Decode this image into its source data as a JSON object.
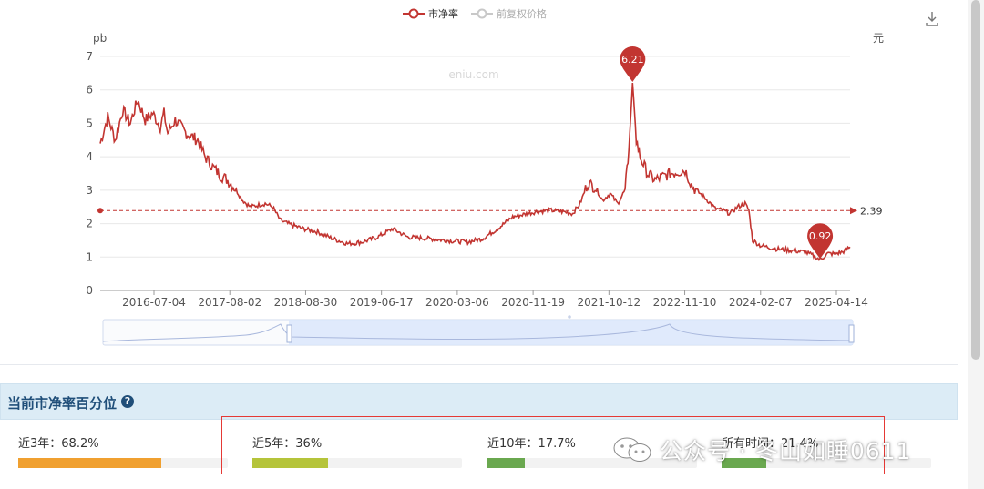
{
  "chart": {
    "watermark_text": "eniu.com",
    "legend": [
      {
        "label": "市净率",
        "color": "#c23531",
        "active": true
      },
      {
        "label": "前复权价格",
        "color": "#c8c8c8",
        "active": false
      }
    ],
    "left_unit": "pb",
    "right_unit": "元",
    "download_icon": "download-icon",
    "colors": {
      "line": "#c23531",
      "avg": "#c23531",
      "grid": "#e8e8e8",
      "axis_text": "#555555"
    }
  },
  "chart_data": {
    "type": "line",
    "ylabel": "pb",
    "ylim": [
      0,
      7
    ],
    "yticks": [
      "0",
      "1",
      "2",
      "3",
      "4",
      "5",
      "6",
      "7"
    ],
    "xticks": [
      "2016-07-04",
      "2017-08-02",
      "2018-08-30",
      "2019-06-17",
      "2020-03-06",
      "2020-11-19",
      "2021-10-12",
      "2022-11-10",
      "2024-02-07",
      "2025-04-14"
    ],
    "series": [
      {
        "name": "市净率",
        "points": [
          [
            0,
            4.4
          ],
          [
            0.01,
            5.2
          ],
          [
            0.02,
            4.5
          ],
          [
            0.03,
            5.4
          ],
          [
            0.04,
            5.0
          ],
          [
            0.05,
            5.7
          ],
          [
            0.06,
            5.1
          ],
          [
            0.07,
            5.3
          ],
          [
            0.08,
            4.9
          ],
          [
            0.085,
            5.3
          ],
          [
            0.09,
            4.7
          ],
          [
            0.1,
            5.1
          ],
          [
            0.115,
            4.7
          ],
          [
            0.13,
            4.5
          ],
          [
            0.14,
            4.0
          ],
          [
            0.15,
            3.7
          ],
          [
            0.16,
            3.45
          ],
          [
            0.17,
            3.3
          ],
          [
            0.18,
            3.05
          ],
          [
            0.19,
            2.7
          ],
          [
            0.2,
            2.5
          ],
          [
            0.21,
            2.55
          ],
          [
            0.22,
            2.6
          ],
          [
            0.23,
            2.5
          ],
          [
            0.24,
            2.1
          ],
          [
            0.25,
            2.0
          ],
          [
            0.27,
            1.85
          ],
          [
            0.29,
            1.75
          ],
          [
            0.31,
            1.55
          ],
          [
            0.33,
            1.4
          ],
          [
            0.35,
            1.45
          ],
          [
            0.37,
            1.6
          ],
          [
            0.39,
            1.85
          ],
          [
            0.41,
            1.6
          ],
          [
            0.44,
            1.55
          ],
          [
            0.46,
            1.5
          ],
          [
            0.49,
            1.45
          ],
          [
            0.51,
            1.55
          ],
          [
            0.53,
            1.85
          ],
          [
            0.55,
            2.2
          ],
          [
            0.58,
            2.35
          ],
          [
            0.6,
            2.4
          ],
          [
            0.62,
            2.35
          ],
          [
            0.63,
            2.3
          ],
          [
            0.64,
            2.6
          ],
          [
            0.65,
            3.2
          ],
          [
            0.66,
            3.1
          ],
          [
            0.67,
            2.7
          ],
          [
            0.68,
            2.9
          ],
          [
            0.69,
            2.6
          ],
          [
            0.7,
            3.0
          ],
          [
            0.705,
            4.2
          ],
          [
            0.71,
            6.21
          ],
          [
            0.715,
            4.5
          ],
          [
            0.72,
            4.0
          ],
          [
            0.73,
            3.5
          ],
          [
            0.74,
            3.3
          ],
          [
            0.76,
            3.5
          ],
          [
            0.78,
            3.6
          ],
          [
            0.79,
            3.1
          ],
          [
            0.8,
            2.9
          ],
          [
            0.81,
            2.7
          ],
          [
            0.82,
            2.45
          ],
          [
            0.83,
            2.4
          ],
          [
            0.84,
            2.3
          ],
          [
            0.85,
            2.5
          ],
          [
            0.86,
            2.6
          ],
          [
            0.865,
            2.4
          ],
          [
            0.87,
            1.5
          ],
          [
            0.88,
            1.35
          ],
          [
            0.9,
            1.25
          ],
          [
            0.92,
            1.2
          ],
          [
            0.94,
            1.15
          ],
          [
            0.95,
            1.05
          ],
          [
            0.96,
            0.92
          ],
          [
            0.97,
            1.1
          ],
          [
            0.98,
            1.1
          ],
          [
            0.99,
            1.15
          ],
          [
            1.0,
            1.3
          ]
        ]
      }
    ],
    "average": {
      "value": 2.39,
      "label": "2.39"
    },
    "markers": [
      {
        "label": "6.21",
        "value": 6.21,
        "type": "max"
      },
      {
        "label": "0.92",
        "value": 0.92,
        "type": "min"
      }
    ],
    "grid": true,
    "legend_position": "top-center"
  },
  "percentile": {
    "title": "当前市净率百分位",
    "help_icon": "question-circle-icon",
    "items": [
      {
        "label": "近3年：68.2%",
        "value": 68.2,
        "color": "#f0a030"
      },
      {
        "label": "近5年：36%",
        "value": 36,
        "color": "#b5c43a"
      },
      {
        "label": "近10年：17.7%",
        "value": 17.7,
        "color": "#6aa84f"
      },
      {
        "label": "所有时间：21.4%",
        "value": 21.4,
        "color": "#6aa84f"
      }
    ]
  },
  "watermark": {
    "text": "公众号 · 冬山如睡0611",
    "icon": "wechat-icon"
  }
}
